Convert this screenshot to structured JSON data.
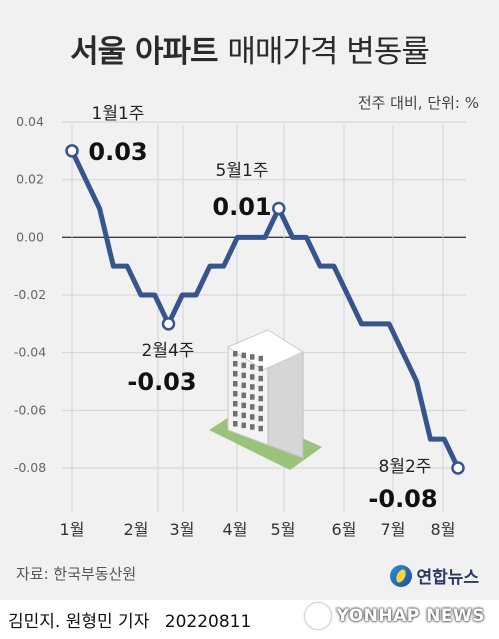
{
  "title": {
    "strong": "서울 아파트",
    "light": "매매가격 변동률"
  },
  "unit": "전주 대비, 단위: %",
  "source": "자료: 한국부동산원",
  "brand": "연합뉴스",
  "credit": {
    "reporters": "김민지. 원형민 기자",
    "date": "20220811"
  },
  "watermark": "YONHAP NEWS",
  "colors": {
    "line": "#35558c",
    "zero": "#3c3c3c",
    "grid": "#d4d4d6",
    "panel": "#f1f1f2",
    "building_base": "#9bc27a"
  },
  "chart_data": {
    "type": "line",
    "title": "서울 아파트 매매가격 변동률",
    "ylabel": "전주 대비, 단위: %",
    "ylim": [
      -0.09,
      0.045
    ],
    "yticks": [
      "0.04",
      "0.02",
      "0.00",
      "-0.02",
      "-0.04",
      "-0.06",
      "-0.08"
    ],
    "yvals": [
      0.04,
      0.02,
      0.0,
      -0.02,
      -0.04,
      -0.06,
      -0.08
    ],
    "xticks": [
      "1월",
      "2월",
      "3월",
      "4월",
      "5월",
      "6월",
      "7월",
      "8월"
    ],
    "series": [
      {
        "values": [
          0.03,
          0.02,
          0.01,
          -0.01,
          -0.01,
          -0.02,
          -0.02,
          -0.03,
          -0.02,
          -0.02,
          -0.01,
          -0.01,
          0.0,
          0.0,
          0.0,
          0.01,
          0.0,
          0.0,
          -0.01,
          -0.01,
          -0.02,
          -0.03,
          -0.03,
          -0.03,
          -0.04,
          -0.05,
          -0.07,
          -0.07,
          -0.08
        ]
      }
    ],
    "annotations": [
      {
        "index": 0,
        "label": "1월1주",
        "value": "0.03"
      },
      {
        "index": 7,
        "label": "2월4주",
        "value": "-0.03"
      },
      {
        "index": 15,
        "label": "5월1주",
        "value": "0.01"
      },
      {
        "index": 28,
        "label": "8월2주",
        "value": "-0.08"
      }
    ]
  }
}
